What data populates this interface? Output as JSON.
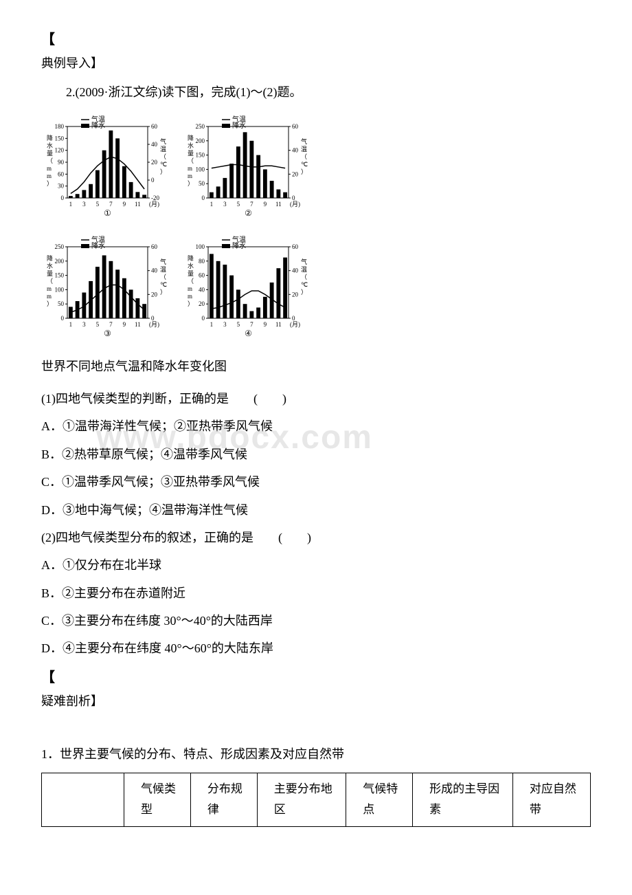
{
  "section1": {
    "bracket_open": "【",
    "title": "典例导入】",
    "question_intro": "2.(2009·浙江文综)读下图，完成(1)～(2)题。"
  },
  "charts": {
    "y_label": "降水量（mm）",
    "x_label": "(月)",
    "right_label": "气温（℃）",
    "legend_temp": "气温",
    "legend_precip": "降水",
    "x_ticks": [
      "1",
      "3",
      "5",
      "7",
      "9",
      "11"
    ],
    "chart1": {
      "id": "①",
      "y_ticks": [
        "0",
        "30",
        "60",
        "90",
        "120",
        "150",
        "180"
      ],
      "right_ticks": [
        "-20",
        "0",
        "20",
        "40",
        "60"
      ],
      "precip": [
        5,
        10,
        20,
        35,
        70,
        120,
        170,
        150,
        80,
        40,
        15,
        8
      ],
      "temp": [
        -15,
        -10,
        -2,
        8,
        16,
        22,
        26,
        24,
        18,
        10,
        0,
        -10
      ],
      "precip_max": 180,
      "temp_min": -20,
      "temp_max": 60,
      "colors": {
        "bar": "#000",
        "line": "#000",
        "axis": "#000"
      }
    },
    "chart2": {
      "id": "②",
      "y_ticks": [
        "0",
        "50",
        "100",
        "150",
        "200",
        "250"
      ],
      "right_ticks": [
        "0",
        "20",
        "40",
        "60"
      ],
      "precip": [
        20,
        40,
        70,
        120,
        180,
        230,
        200,
        150,
        100,
        60,
        30,
        20
      ],
      "temp": [
        25,
        26,
        27,
        28,
        28,
        27,
        26,
        26,
        27,
        27,
        26,
        25
      ],
      "precip_max": 250,
      "temp_min": 0,
      "temp_max": 60,
      "colors": {
        "bar": "#000",
        "line": "#000",
        "axis": "#000"
      }
    },
    "chart3": {
      "id": "③",
      "y_ticks": [
        "0",
        "50",
        "100",
        "150",
        "200",
        "250"
      ],
      "right_ticks": [
        "0",
        "20",
        "40",
        "60"
      ],
      "precip": [
        40,
        60,
        90,
        130,
        180,
        220,
        200,
        170,
        140,
        100,
        70,
        50
      ],
      "temp": [
        5,
        7,
        10,
        15,
        20,
        25,
        28,
        28,
        24,
        18,
        12,
        7
      ],
      "precip_max": 250,
      "temp_min": 0,
      "temp_max": 60,
      "colors": {
        "bar": "#000",
        "line": "#000",
        "axis": "#000"
      }
    },
    "chart4": {
      "id": "④",
      "y_ticks": [
        "0",
        "20",
        "40",
        "60",
        "80",
        "100"
      ],
      "right_ticks": [
        "0",
        "20",
        "40",
        "60"
      ],
      "precip": [
        90,
        80,
        75,
        60,
        40,
        20,
        10,
        15,
        30,
        50,
        70,
        85
      ],
      "temp": [
        8,
        9,
        11,
        13,
        16,
        20,
        23,
        23,
        20,
        16,
        12,
        9
      ],
      "precip_max": 100,
      "temp_min": 0,
      "temp_max": 60,
      "colors": {
        "bar": "#000",
        "line": "#000",
        "axis": "#000"
      }
    }
  },
  "caption": "世界不同地点气温和降水年变化图",
  "q1": {
    "stem": "(1)四地气候类型的判断，正确的是　　(　　)",
    "A": "A．①温带海洋性气候；②亚热带季风气候",
    "B": "B．②热带草原气候；④温带季风气候",
    "C": "C．①温带季风气候；③亚热带季风气候",
    "D": "D．③地中海气候；④温带海洋性气候"
  },
  "q2": {
    "stem": "(2)四地气候类型分布的叙述，正确的是　　(　　)",
    "A": "A．①仅分布在北半球",
    "B": "B．②主要分布在赤道附近",
    "C": "C．③主要分布在纬度 30°～40°的大陆西岸",
    "D": "D．④主要分布在纬度 40°～60°的大陆东岸"
  },
  "section2": {
    "bracket_open": "【",
    "title": "疑难剖析】"
  },
  "table": {
    "intro": "1．世界主要气候的分布、特点、形成因素及对应自然带",
    "headers": [
      "气候类型",
      "分布规律",
      "主要分布地区",
      "气候特点",
      "形成的主导因素",
      "对应自然带"
    ]
  },
  "watermark": "www.bdocx.com"
}
